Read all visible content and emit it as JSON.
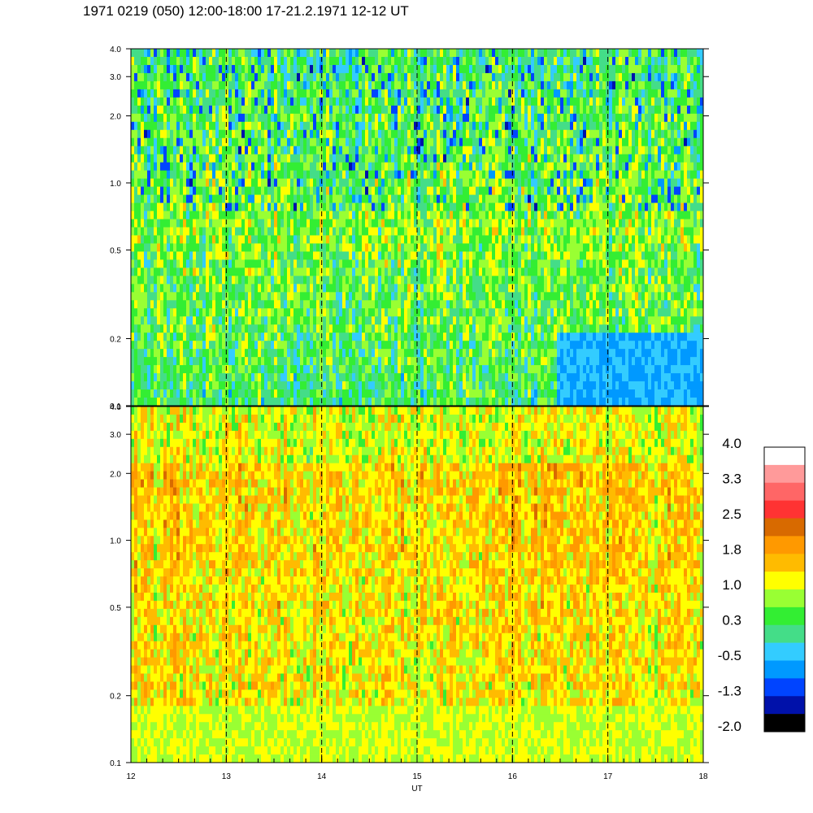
{
  "title": "1971 0219 (050) 12:00-18:00 17-21.2.1971 12-12 UT",
  "chart_data": [
    {
      "type": "heatmap",
      "panel": "top",
      "x_range": [
        12,
        18
      ],
      "y_range": [
        0.1,
        4.0
      ],
      "y_scale": "log",
      "y_ticks": [
        0.1,
        0.2,
        0.5,
        1.0,
        2.0,
        3.0,
        4.0
      ],
      "y_tick_labels": [
        "0.1",
        "0.2",
        "0.5",
        "1.0",
        "2.0",
        "3.0",
        "4.0"
      ],
      "dominant_levels": [
        0.3,
        1.0,
        -0.5
      ],
      "vertical_dashed_lines": [
        13,
        14,
        15,
        16,
        17
      ]
    },
    {
      "type": "heatmap",
      "panel": "bottom",
      "x_range": [
        12,
        18
      ],
      "y_range": [
        0.1,
        4.0
      ],
      "y_scale": "log",
      "y_ticks": [
        0.1,
        0.2,
        0.5,
        1.0,
        2.0,
        3.0,
        4.0
      ],
      "y_tick_labels": [
        "0.1",
        "0.2",
        "0.5",
        "1.0",
        "2.0",
        "3.0",
        "4.0"
      ],
      "dominant_levels": [
        1.5,
        1.8,
        1.0
      ],
      "vertical_dashed_lines": [
        13,
        14,
        15,
        16,
        17
      ]
    }
  ],
  "x_axis": {
    "label": "UT",
    "ticks": [
      12,
      13,
      14,
      15,
      16,
      17,
      18
    ],
    "tick_labels": [
      "12",
      "13",
      "14",
      "15",
      "16",
      "17",
      "18"
    ]
  },
  "colorbar": {
    "min": -2.0,
    "max": 4.0,
    "labels": [
      "4.0",
      "3.3",
      "2.5",
      "1.8",
      "1.0",
      "0.3",
      "-0.5",
      "-1.3",
      "-2.0"
    ],
    "colors_top_to_bottom": [
      "#ffffff",
      "#ff9a9a",
      "#ff6666",
      "#ff3333",
      "#d86a00",
      "#ff9900",
      "#ffbb00",
      "#ffff00",
      "#99ff33",
      "#33ee33",
      "#44dd88",
      "#33ccff",
      "#0099ff",
      "#0044ff",
      "#0011aa",
      "#000000"
    ]
  }
}
